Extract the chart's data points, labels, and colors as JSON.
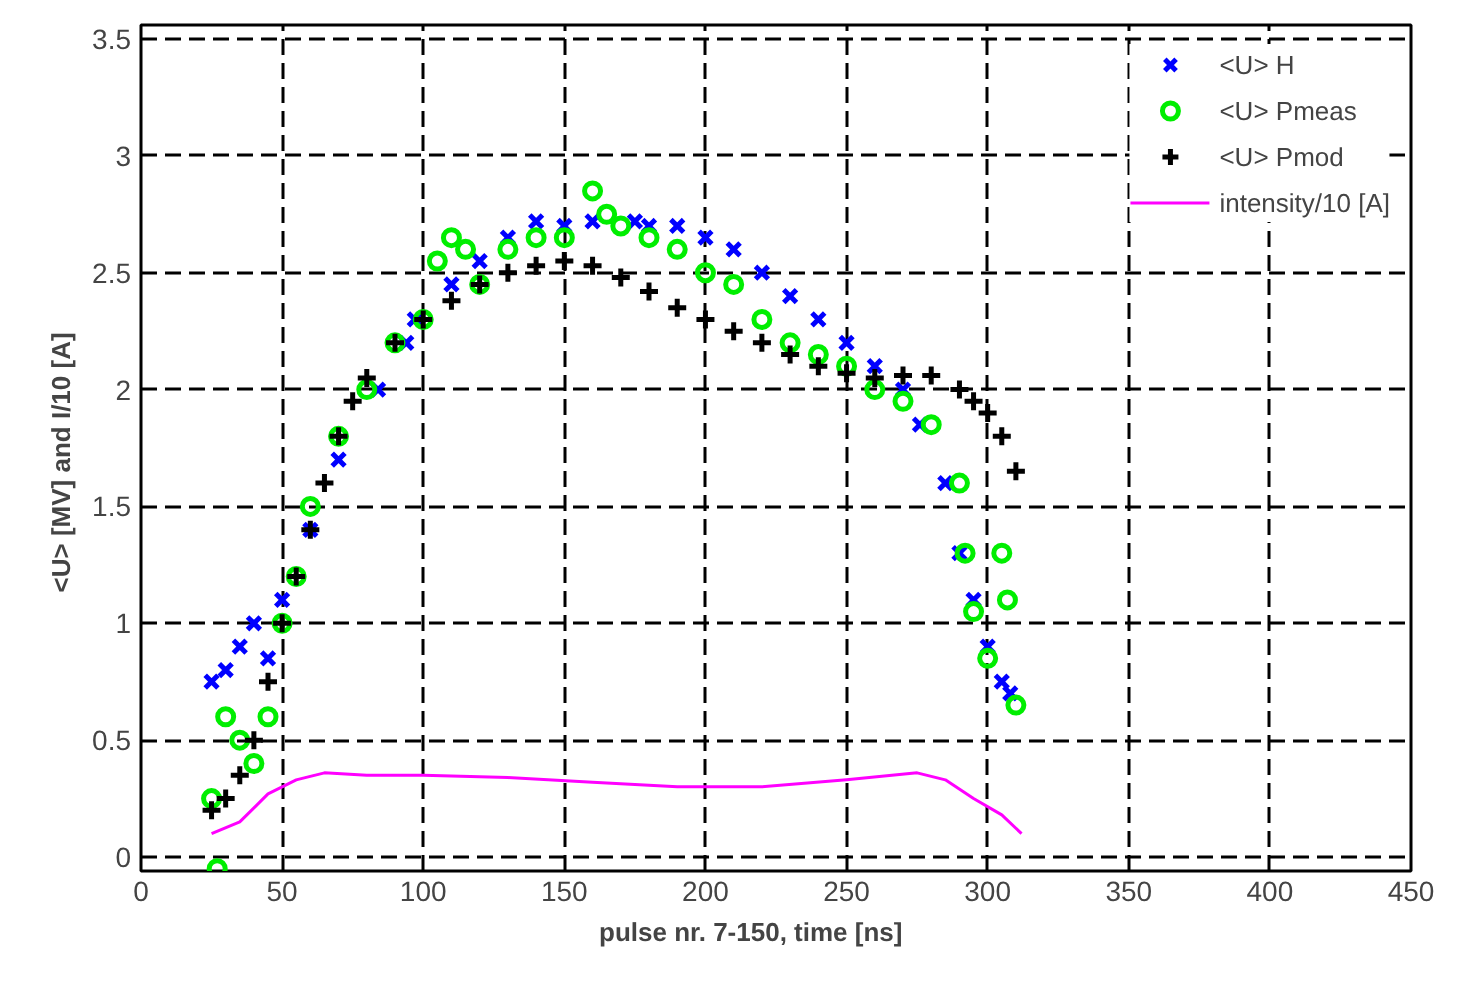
{
  "chart_data": {
    "type": "scatter",
    "xlabel": "pulse nr. 7-150,        time [ns]",
    "ylabel": "<U> [MV]   and   I/10 [A]",
    "xlim": [
      0,
      450
    ],
    "ylim": [
      -0.06,
      3.56
    ],
    "xticks": [
      0,
      50,
      100,
      150,
      200,
      250,
      300,
      350,
      400,
      450
    ],
    "yticks": [
      0,
      0.5,
      1,
      1.5,
      2,
      2.5,
      3,
      3.5
    ],
    "grid": true,
    "legend": "top right",
    "series": [
      {
        "name": "<U> H",
        "color": "#0000ff",
        "marker": "x",
        "x": [
          25,
          30,
          35,
          40,
          45,
          50,
          60,
          70,
          84,
          94,
          97,
          110,
          120,
          130,
          140,
          150,
          160,
          175,
          180,
          190,
          200,
          210,
          220,
          230,
          240,
          250,
          260,
          270,
          276,
          285,
          290,
          295,
          300,
          305,
          308
        ],
        "values": [
          0.75,
          0.8,
          0.9,
          1.0,
          0.85,
          1.1,
          1.4,
          1.7,
          2.0,
          2.2,
          2.3,
          2.45,
          2.55,
          2.65,
          2.72,
          2.7,
          2.72,
          2.72,
          2.7,
          2.7,
          2.65,
          2.6,
          2.5,
          2.4,
          2.3,
          2.2,
          2.1,
          2.0,
          1.85,
          1.6,
          1.3,
          1.1,
          0.9,
          0.75,
          0.7
        ]
      },
      {
        "name": "<U> Pmeas",
        "color": "#00ee00",
        "marker": "circle",
        "x": [
          25,
          27,
          30,
          35,
          40,
          45,
          50,
          55,
          60,
          70,
          80,
          90,
          100,
          105,
          110,
          115,
          120,
          130,
          140,
          150,
          160,
          165,
          170,
          180,
          190,
          200,
          210,
          220,
          230,
          240,
          250,
          260,
          270,
          280,
          290,
          292,
          295,
          300,
          305,
          307,
          310
        ],
        "values": [
          0.25,
          -0.05,
          0.6,
          0.5,
          0.4,
          0.6,
          1.0,
          1.2,
          1.5,
          1.8,
          2.0,
          2.2,
          2.3,
          2.55,
          2.65,
          2.6,
          2.45,
          2.6,
          2.65,
          2.65,
          2.85,
          2.75,
          2.7,
          2.65,
          2.6,
          2.5,
          2.45,
          2.3,
          2.2,
          2.15,
          2.1,
          2.0,
          1.95,
          1.85,
          1.6,
          1.3,
          1.05,
          0.85,
          1.3,
          1.1,
          0.65
        ]
      },
      {
        "name": "<U> Pmod",
        "color": "#000000",
        "marker": "cross",
        "x": [
          25,
          30,
          35,
          40,
          45,
          50,
          55,
          60,
          65,
          70,
          75,
          80,
          90,
          100,
          110,
          120,
          130,
          140,
          150,
          160,
          170,
          180,
          190,
          200,
          210,
          220,
          230,
          240,
          250,
          260,
          270,
          280,
          290,
          295,
          300,
          305,
          310
        ],
        "values": [
          0.2,
          0.25,
          0.35,
          0.5,
          0.75,
          1.0,
          1.2,
          1.4,
          1.6,
          1.8,
          1.95,
          2.05,
          2.2,
          2.3,
          2.38,
          2.45,
          2.5,
          2.53,
          2.55,
          2.53,
          2.48,
          2.42,
          2.35,
          2.3,
          2.25,
          2.2,
          2.15,
          2.1,
          2.07,
          2.05,
          2.06,
          2.06,
          2.0,
          1.95,
          1.9,
          1.8,
          1.65
        ]
      },
      {
        "name": "intensity/10 [A]",
        "type": "line",
        "color": "#ff00ff",
        "marker": "none",
        "x": [
          25,
          35,
          45,
          55,
          65,
          80,
          100,
          130,
          160,
          190,
          220,
          250,
          275,
          285,
          295,
          305,
          312
        ],
        "values": [
          0.1,
          0.15,
          0.27,
          0.33,
          0.36,
          0.35,
          0.35,
          0.34,
          0.32,
          0.3,
          0.3,
          0.33,
          0.36,
          0.33,
          0.25,
          0.18,
          0.1
        ]
      }
    ]
  }
}
